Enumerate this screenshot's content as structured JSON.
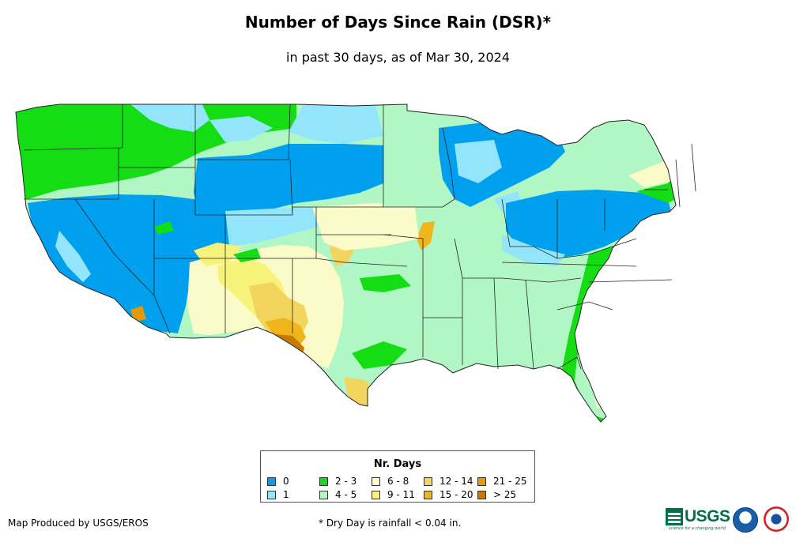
{
  "header": {
    "title": "Number of Days Since Rain (DSR)*",
    "subtitle": "in past 30 days, as of Mar 30, 2024"
  },
  "legend": {
    "title": "Nr. Days",
    "items": [
      {
        "label": "0",
        "color": "#00a0ef"
      },
      {
        "label": "1",
        "color": "#93e5fb"
      },
      {
        "label": "2 - 3",
        "color": "#14dd14"
      },
      {
        "label": "4 - 5",
        "color": "#b1f7c5"
      },
      {
        "label": "6 - 8",
        "color": "#fbfbc9"
      },
      {
        "label": "9 - 11",
        "color": "#f7f27a"
      },
      {
        "label": "12 - 14",
        "color": "#f3d45c"
      },
      {
        "label": "15 - 20",
        "color": "#f0b51c"
      },
      {
        "label": "21 - 25",
        "color": "#e39a05"
      },
      {
        "label": "> 25",
        "color": "#c87a00"
      }
    ]
  },
  "footer": {
    "credit": "Map Produced by USGS/EROS",
    "note": "* Dry Day is rainfall < 0.04 in.",
    "logos": [
      {
        "name": "usgs-logo",
        "text": "USGS",
        "tagline": "science for a changing world"
      },
      {
        "name": "noaa-logo"
      },
      {
        "name": "nws-logo"
      }
    ]
  }
}
